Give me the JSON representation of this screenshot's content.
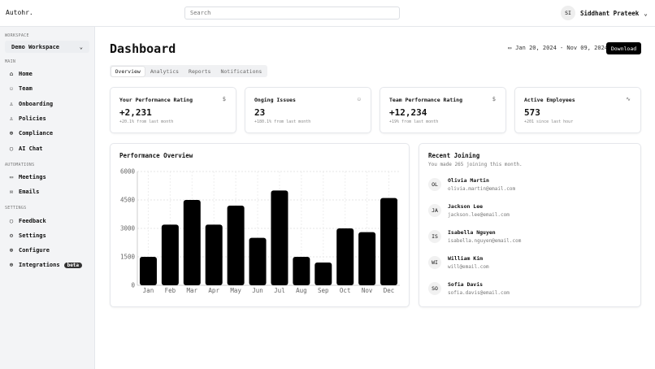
{
  "app": {
    "logo": "Autohr.",
    "search_placeholder": "Search",
    "user_initials": "SI",
    "user_name": "Siddhant Prateek"
  },
  "sidebar": {
    "workspace_label": "WORKSPACE",
    "workspace": "Demo Workspace",
    "sections": [
      {
        "label": "MAIN",
        "items": [
          {
            "label": "Home",
            "icon": "home-icon"
          },
          {
            "label": "Team",
            "icon": "users-icon"
          },
          {
            "label": "Onboarding",
            "icon": "user-plus-icon"
          },
          {
            "label": "Policies",
            "icon": "user-icon"
          },
          {
            "label": "Compliance",
            "icon": "globe-icon"
          },
          {
            "label": "AI Chat",
            "icon": "chat-icon"
          }
        ]
      },
      {
        "label": "AUTOMATIONS",
        "items": [
          {
            "label": "Meetings",
            "icon": "calendar-icon"
          },
          {
            "label": "Emails",
            "icon": "mail-icon"
          }
        ]
      },
      {
        "label": "SETTINGS",
        "items": [
          {
            "label": "Feedback",
            "icon": "chat-icon"
          },
          {
            "label": "Settings",
            "icon": "gear-icon"
          },
          {
            "label": "Configure",
            "icon": "cog-icon"
          },
          {
            "label": "Integrations",
            "icon": "globe-icon",
            "badge": "beta"
          }
        ]
      }
    ]
  },
  "header": {
    "title": "Dashboard",
    "date_range": "Jan 20, 2024 - Nov 09, 2024",
    "download": "Download"
  },
  "tabs": [
    "Overview",
    "Analytics",
    "Reports",
    "Notifications"
  ],
  "kpis": [
    {
      "title": "Your Performance Rating",
      "value": "+2,231",
      "sub": "+20.1% from last month",
      "icon": "$"
    },
    {
      "title": "Onging Issues",
      "value": "23",
      "sub": "+180.1% from last month",
      "icon": "users-icon"
    },
    {
      "title": "Team Performance Rating",
      "value": "+12,234",
      "sub": "+19% from last month",
      "icon": "$"
    },
    {
      "title": "Active Employees",
      "value": "573",
      "sub": "+201 since last hour",
      "icon": "activity-icon"
    }
  ],
  "chart_data": {
    "type": "bar",
    "title": "Performance Overview",
    "categories": [
      "Jan",
      "Feb",
      "Mar",
      "Apr",
      "May",
      "Jun",
      "Jul",
      "Aug",
      "Sep",
      "Oct",
      "Nov",
      "Dec"
    ],
    "values": [
      1500,
      3200,
      4500,
      3200,
      4200,
      2500,
      5000,
      1500,
      1200,
      3000,
      2800,
      4600
    ],
    "ylim": [
      0,
      6000
    ],
    "yticks": [
      "0",
      "1500",
      "3000",
      "4500",
      "6000"
    ],
    "grid": true
  },
  "recent": {
    "title": "Recent Joining",
    "subtitle": "You made 265 joining this month.",
    "people": [
      {
        "initials": "OL",
        "name": "Olivia Martin",
        "email": "olivia.martin@email.com"
      },
      {
        "initials": "JA",
        "name": "Jackson Lee",
        "email": "jackson.lee@email.com"
      },
      {
        "initials": "IS",
        "name": "Isabella Nguyen",
        "email": "isabella.nguyen@email.com"
      },
      {
        "initials": "WI",
        "name": "William Kim",
        "email": "will@email.com"
      },
      {
        "initials": "SO",
        "name": "Sofia Davis",
        "email": "sofia.davis@email.com"
      }
    ]
  }
}
